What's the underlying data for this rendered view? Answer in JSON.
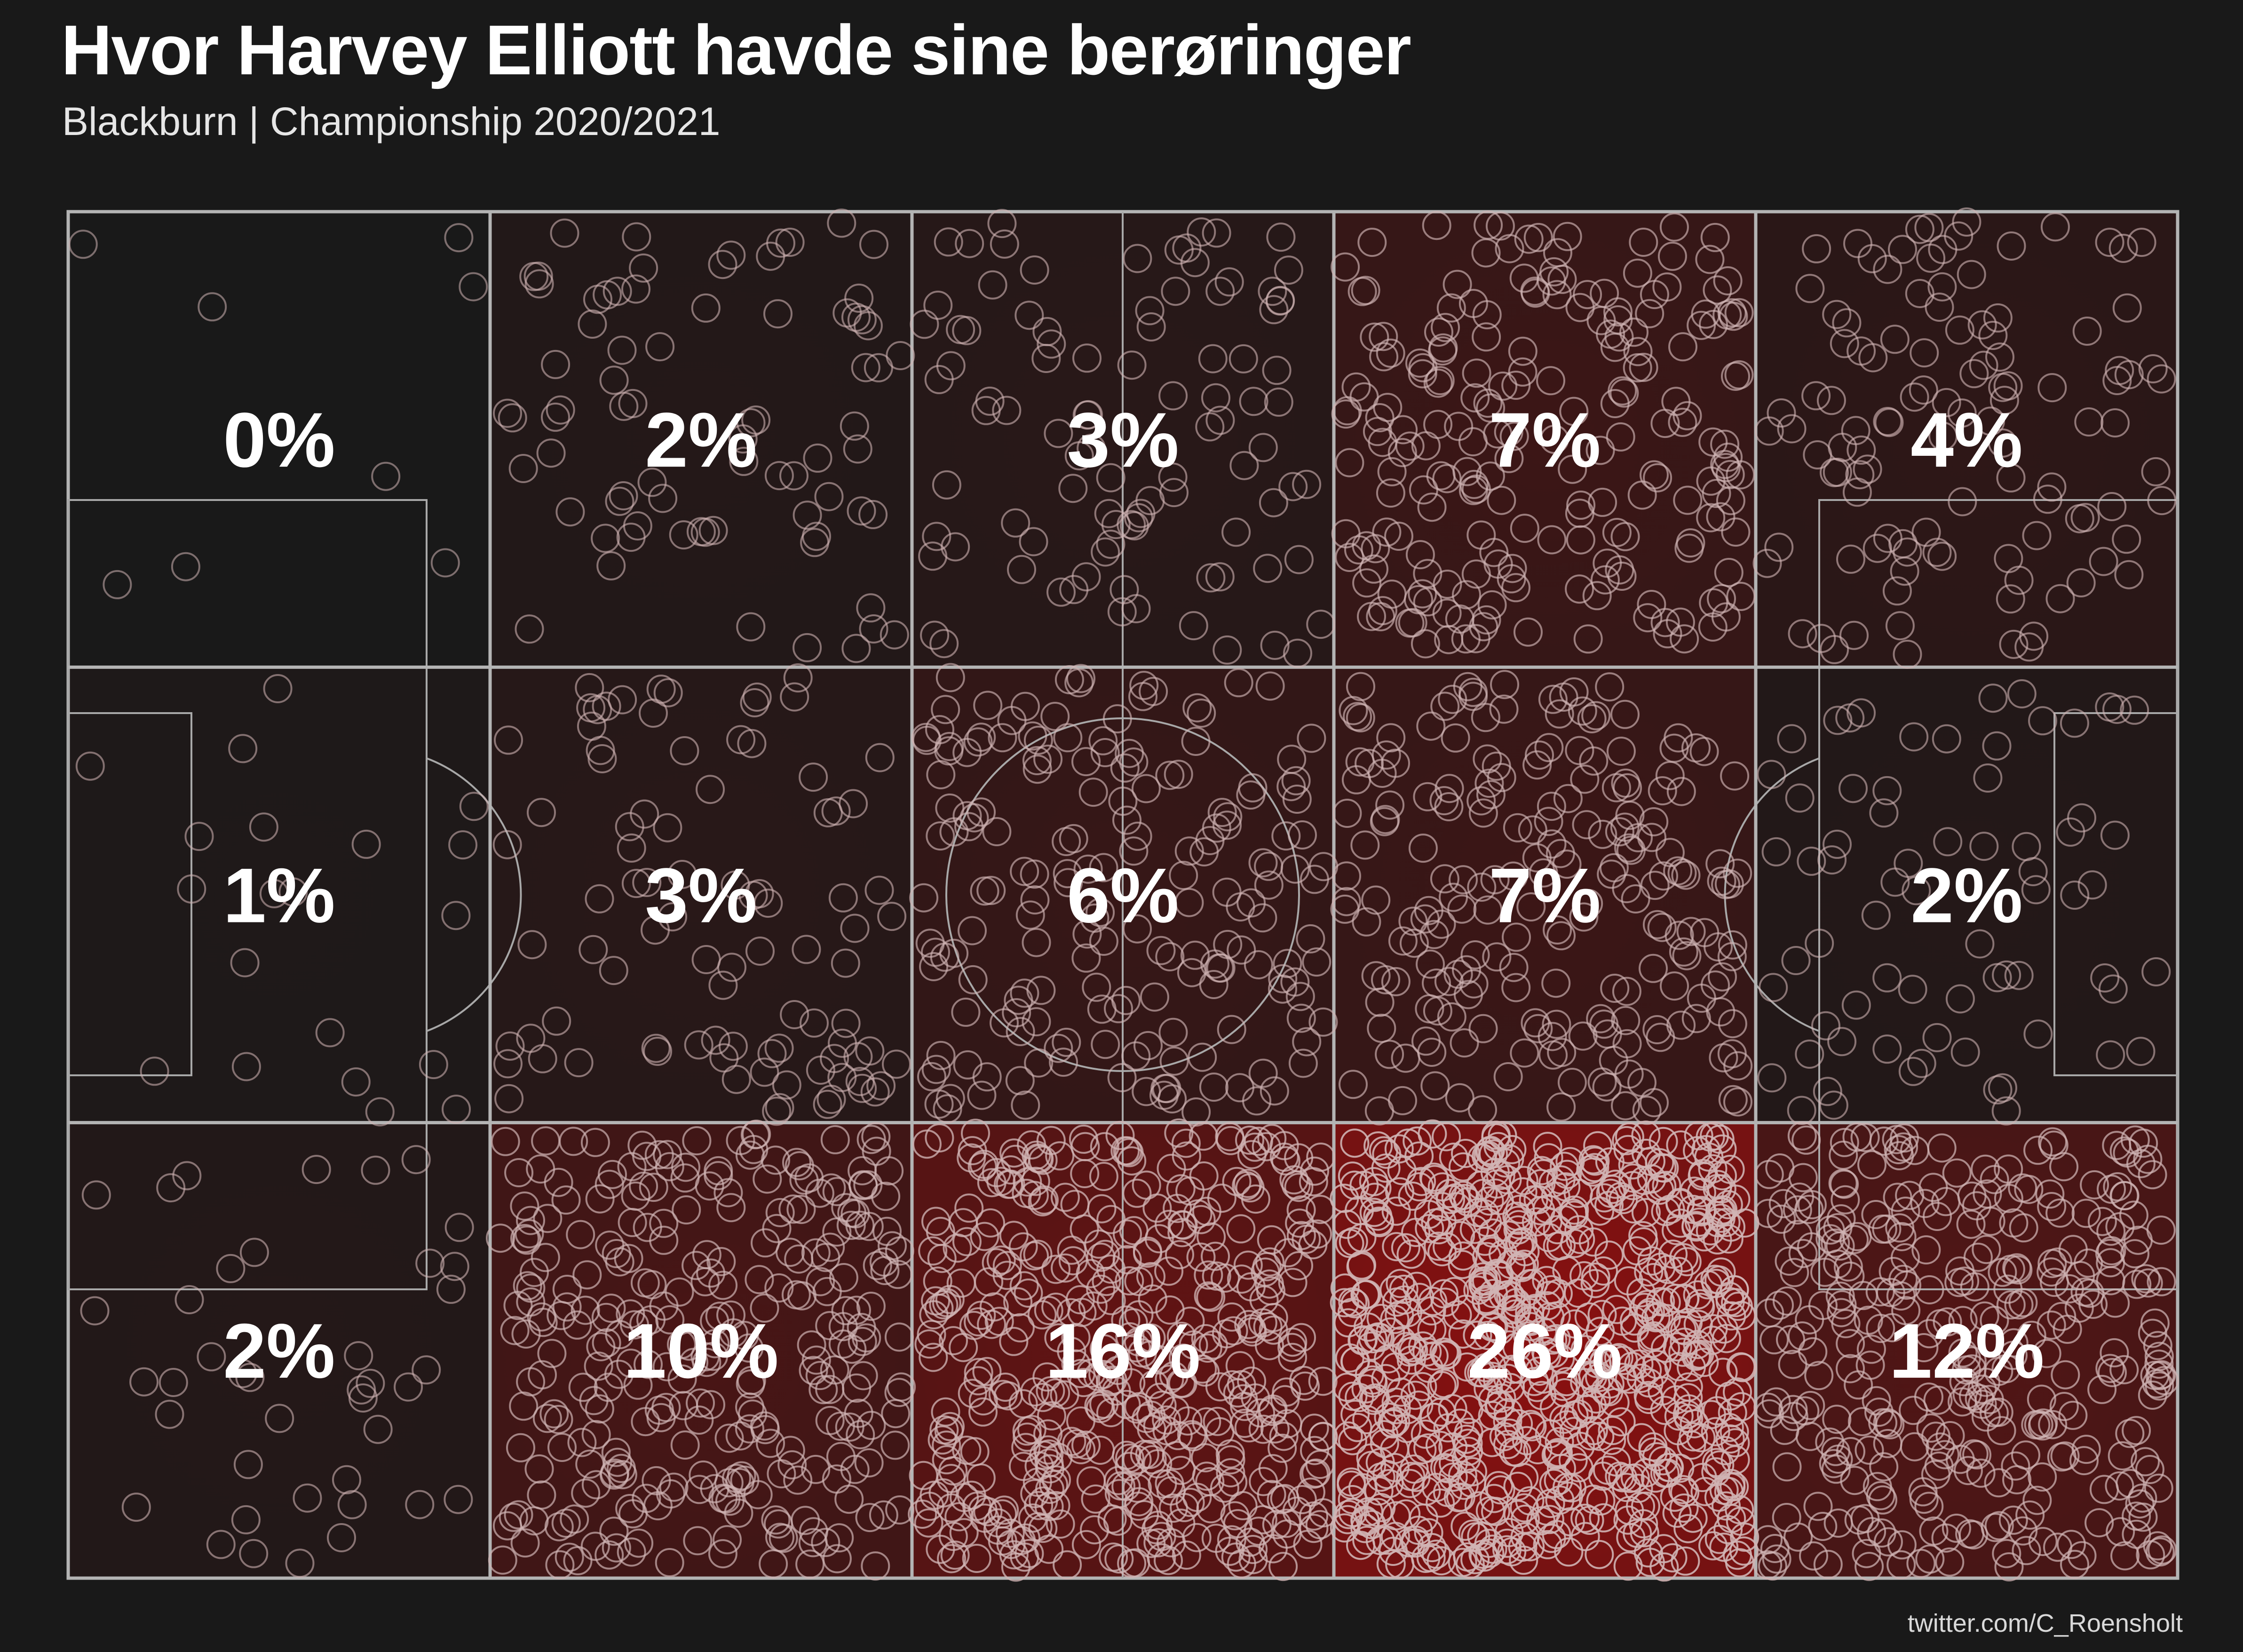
{
  "header": {
    "title": "Hvor Harvey Elliott havde sine berøringer",
    "subtitle": "Blackburn | Championship 2020/2021"
  },
  "footer": {
    "credit": "twitter.com/C_Roensholt"
  },
  "colors": {
    "background": "#191919",
    "pitch_lines": "#b0b0b0",
    "heat_high": "#8b1010",
    "dot_stroke": "#d0b4b4"
  },
  "chart_data": {
    "type": "heatmap",
    "title": "Hvor Harvey Elliott havde sine berøringer",
    "subtitle": "Blackburn | Championship 2020/2021",
    "columns": 5,
    "rows": 3,
    "unit": "%",
    "zones": [
      {
        "col": 0,
        "row": 0,
        "value": 0,
        "label": "0%",
        "dots": 8
      },
      {
        "col": 1,
        "row": 0,
        "value": 2,
        "label": "2%",
        "dots": 75
      },
      {
        "col": 2,
        "row": 0,
        "value": 3,
        "label": "3%",
        "dots": 95
      },
      {
        "col": 3,
        "row": 0,
        "value": 7,
        "label": "7%",
        "dots": 210
      },
      {
        "col": 4,
        "row": 0,
        "value": 4,
        "label": "4%",
        "dots": 110
      },
      {
        "col": 0,
        "row": 1,
        "value": 1,
        "label": "1%",
        "dots": 20
      },
      {
        "col": 1,
        "row": 1,
        "value": 3,
        "label": "3%",
        "dots": 90
      },
      {
        "col": 2,
        "row": 1,
        "value": 6,
        "label": "6%",
        "dots": 180
      },
      {
        "col": 3,
        "row": 1,
        "value": 7,
        "label": "7%",
        "dots": 210
      },
      {
        "col": 4,
        "row": 1,
        "value": 2,
        "label": "2%",
        "dots": 70
      },
      {
        "col": 0,
        "row": 2,
        "value": 2,
        "label": "2%",
        "dots": 40
      },
      {
        "col": 1,
        "row": 2,
        "value": 10,
        "label": "10%",
        "dots": 300
      },
      {
        "col": 2,
        "row": 2,
        "value": 16,
        "label": "16%",
        "dots": 480
      },
      {
        "col": 3,
        "row": 2,
        "value": 26,
        "label": "26%",
        "dots": 760
      },
      {
        "col": 4,
        "row": 2,
        "value": 12,
        "label": "12%",
        "dots": 350
      }
    ]
  }
}
